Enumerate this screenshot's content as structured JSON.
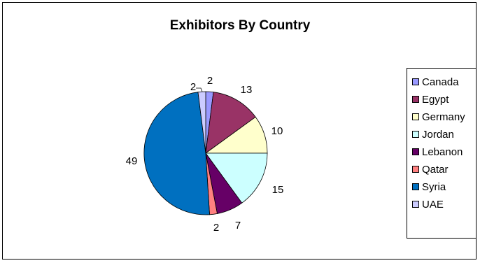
{
  "chart_data": {
    "type": "pie",
    "title": "Exhibitors By Country",
    "categories": [
      "Canada",
      "Egypt",
      "Germany",
      "Jordan",
      "Lebanon",
      "Qatar",
      "Syria",
      "UAE"
    ],
    "values": [
      2,
      13,
      10,
      15,
      7,
      2,
      49,
      2
    ],
    "data_labels": [
      "2",
      "13",
      "10",
      "15",
      "7",
      "2",
      "49",
      "2"
    ],
    "colors": [
      "#9999ff",
      "#993366",
      "#ffffcc",
      "#ccffff",
      "#660066",
      "#ff8080",
      "#0070c0",
      "#ccccff"
    ],
    "legend_position": "right"
  }
}
